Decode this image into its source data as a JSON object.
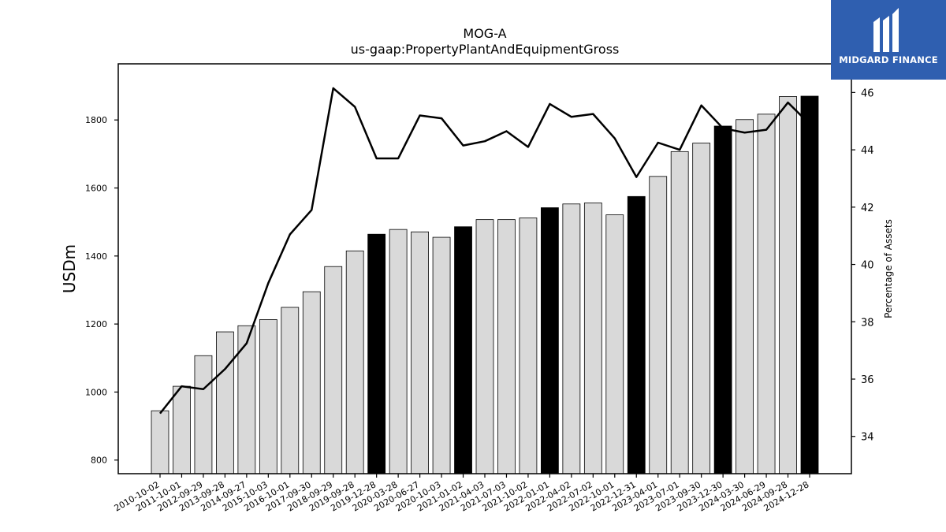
{
  "brand": {
    "name": "MIDGARD FINANCE",
    "icon": "midgard-logo-icon",
    "color": "#2f5fb0"
  },
  "chart_data": {
    "type": "bar",
    "title": "MOG-A",
    "subtitle": "us-gaap:PropertyPlantAndEquipmentGross",
    "ylabel": "USDm",
    "y2label": "Percentage of Assets",
    "ylim": [
      760,
      1965
    ],
    "y2lim": [
      32.7,
      47.0
    ],
    "yticks": [
      800,
      1000,
      1200,
      1400,
      1600,
      1800
    ],
    "y2ticks": [
      34,
      36,
      38,
      40,
      42,
      44,
      46
    ],
    "grid": false,
    "categories": [
      "2010-10-02",
      "2011-10-01",
      "2012-09-29",
      "2013-09-28",
      "2014-09-27",
      "2015-10-03",
      "2016-10-01",
      "2017-09-30",
      "2018-09-29",
      "2019-09-28",
      "2019-12-28",
      "2020-03-28",
      "2020-06-27",
      "2020-10-03",
      "2021-01-02",
      "2021-04-03",
      "2021-07-03",
      "2021-10-02",
      "2022-01-01",
      "2022-04-02",
      "2022-07-02",
      "2022-10-01",
      "2022-12-31",
      "2023-04-01",
      "2023-07-01",
      "2023-09-30",
      "2023-12-30",
      "2024-03-30",
      "2024-06-29",
      "2024-09-28",
      "2024-12-28"
    ],
    "series": [
      {
        "type": "bar",
        "axis": "left",
        "values": [
          945,
          1017,
          1107,
          1177,
          1195,
          1213,
          1249,
          1295,
          1369,
          1415,
          1464,
          1478,
          1471,
          1455,
          1486,
          1507,
          1507,
          1512,
          1542,
          1553,
          1556,
          1521,
          1575,
          1634,
          1707,
          1732,
          1782,
          1801,
          1817,
          1869,
          1870
        ],
        "highlight": [
          false,
          false,
          false,
          false,
          false,
          false,
          false,
          false,
          false,
          false,
          true,
          false,
          false,
          false,
          true,
          false,
          false,
          false,
          true,
          false,
          false,
          false,
          true,
          false,
          false,
          false,
          true,
          false,
          false,
          false,
          true
        ],
        "color": "#d9d9d9",
        "highlight_color": "#000000"
      },
      {
        "type": "line",
        "axis": "right",
        "values": [
          34.8,
          35.75,
          35.65,
          36.35,
          37.25,
          39.35,
          41.05,
          41.9,
          46.15,
          45.5,
          43.7,
          43.7,
          45.2,
          45.1,
          44.15,
          44.3,
          44.65,
          44.1,
          45.6,
          45.15,
          45.25,
          44.4,
          43.05,
          44.25,
          44.0,
          45.55,
          44.75,
          44.6,
          44.7,
          45.65,
          44.9
        ],
        "color": "#000000"
      }
    ]
  }
}
